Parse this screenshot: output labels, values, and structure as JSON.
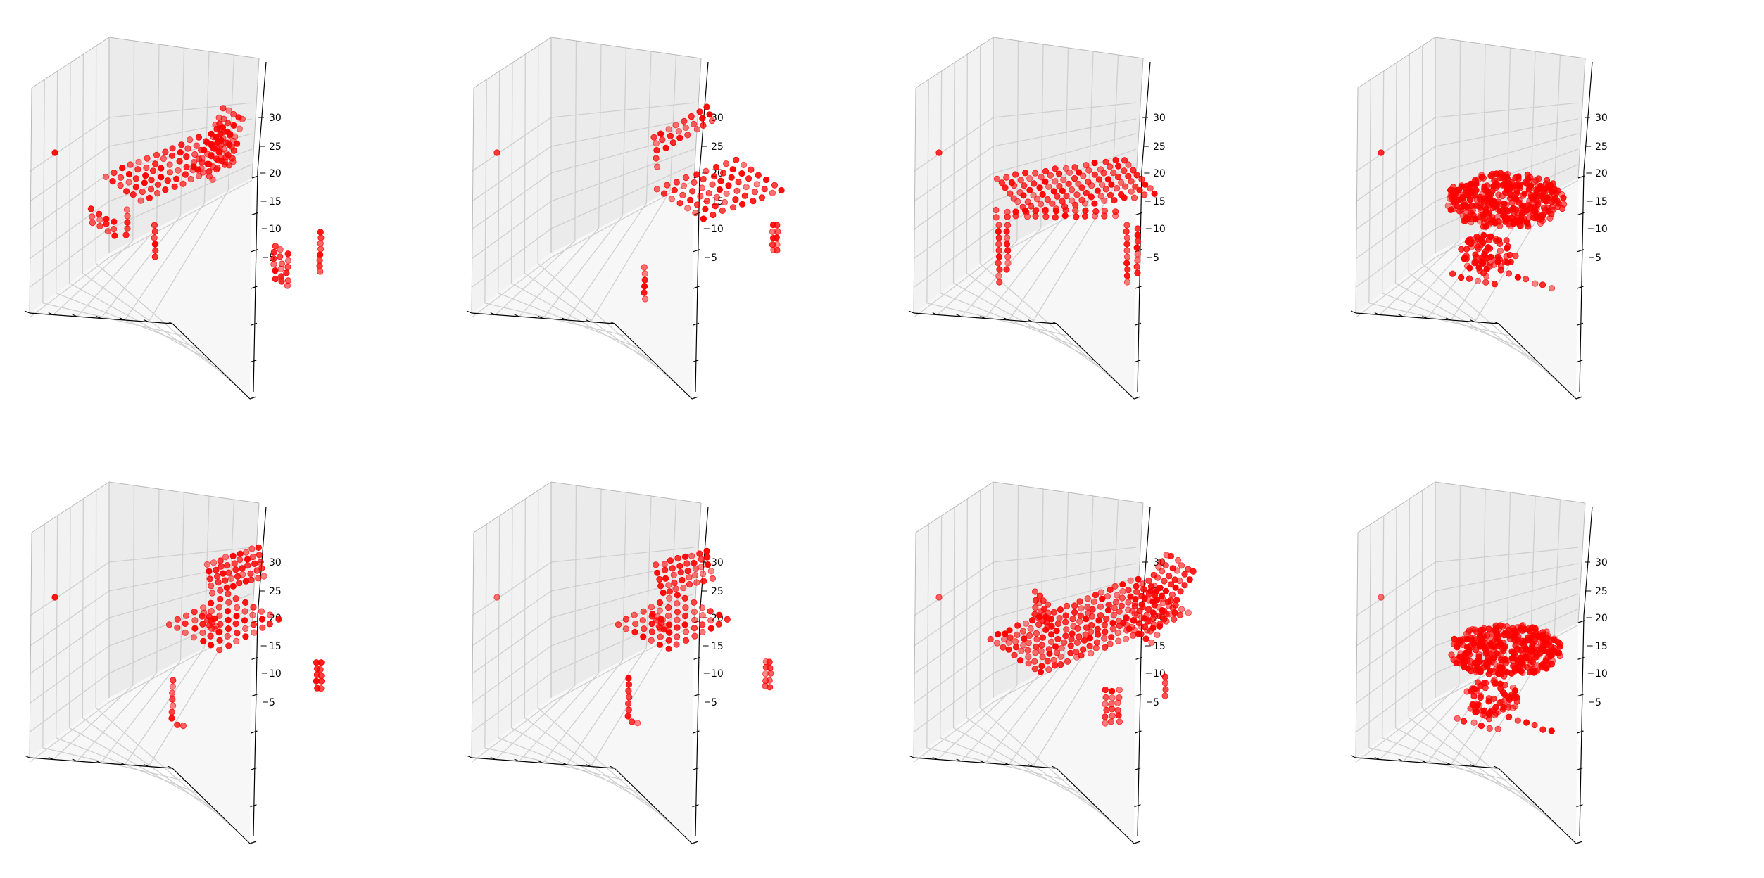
{
  "chart_data": {
    "type": "scatter",
    "subtype": "3d-voxel-scatter",
    "grid": true,
    "marker_color": "#ff0000",
    "pane_colors": {
      "left": "#f2f2f2",
      "right": "#ebebeb",
      "floor": "#f7f7f7",
      "grid": "#cfcfcf"
    },
    "zlim": [
      1,
      32
    ],
    "z_ticks": [
      "5",
      "10",
      "15",
      "20",
      "25",
      "30"
    ],
    "subplots": [
      {
        "shape": "armchair"
      },
      {
        "shape": "sparse-chair"
      },
      {
        "shape": "box-chair"
      },
      {
        "shape": "swivel-chair"
      },
      {
        "shape": "sparse-chair-b"
      },
      {
        "shape": "sparse-chair-c"
      },
      {
        "shape": "lounge-chair"
      },
      {
        "shape": "swivel-chair-b"
      }
    ]
  }
}
